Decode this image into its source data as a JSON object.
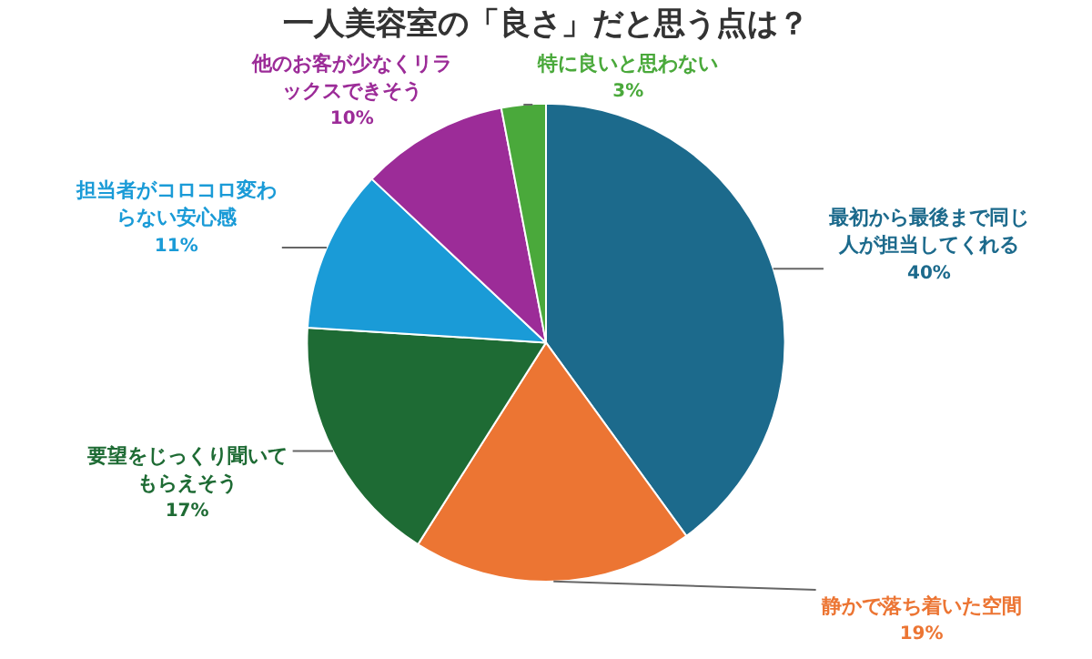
{
  "chart_data": {
    "type": "pie",
    "title": "一人美容室の「良さ」だと思う点は？",
    "categories": [
      "最初から最後まで同じ人が担当してくれる",
      "静かで落ち着いた空間",
      "要望をじっくり聞いてもらえそう",
      "担当者がコロコロ変わらない安心感",
      "他のお客が少なくリラックスできそう",
      "特に良いと思わない"
    ],
    "values": [
      40,
      19,
      17,
      11,
      10,
      3
    ],
    "value_labels": [
      "40%",
      "19%",
      "17%",
      "11%",
      "10%",
      "3%"
    ],
    "colors": [
      "#1c6a8c",
      "#ec7533",
      "#1e6b34",
      "#1a9bd7",
      "#9c2c98",
      "#4aa93b"
    ],
    "legend": false
  }
}
